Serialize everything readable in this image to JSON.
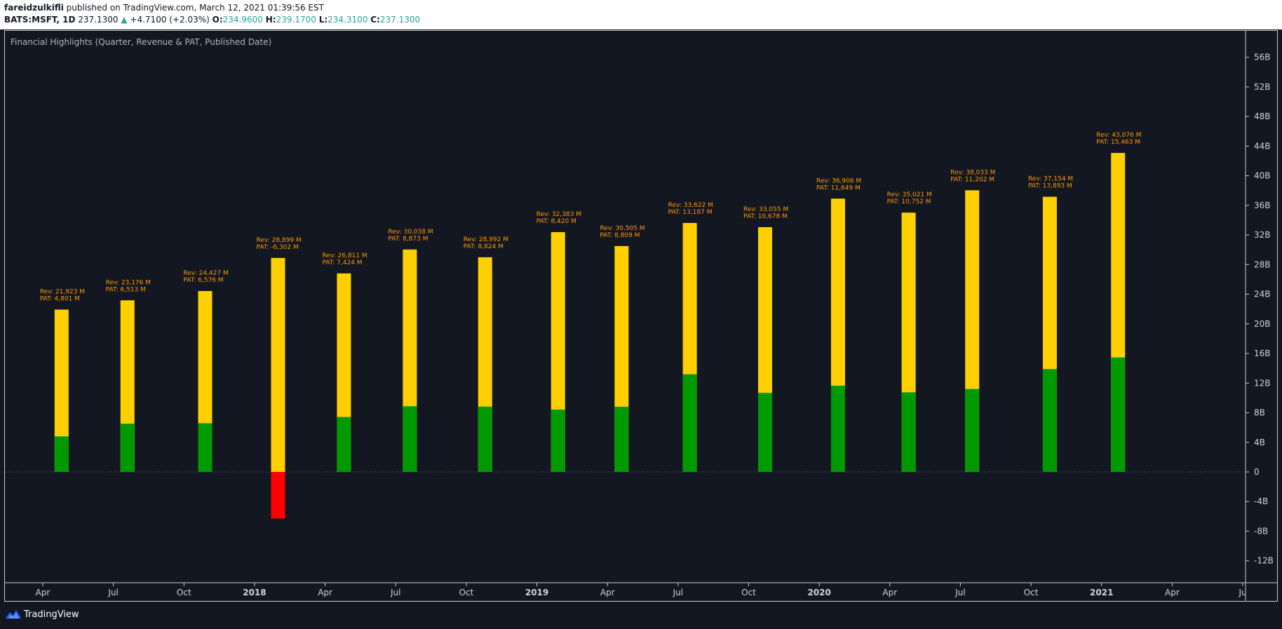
{
  "header": {
    "author": "fareidzulkifli",
    "published_text": "published on TradingView.com, March 12, 2021 01:39:56 EST",
    "symbol": "BATS:MSFT, 1D",
    "price": "237.1300",
    "change_arrow": "▲",
    "change": "+4.7100 (+2.03%)",
    "open_label": "O:",
    "open": "234.9600",
    "high_label": "H:",
    "high": "239.1700",
    "low_label": "L:",
    "low": "234.3100",
    "close_label": "C:",
    "close": "237.1300"
  },
  "indicator_title": "Financial Highlights (Quarter, Revenue & PAT, Published Date)",
  "footer": {
    "brand": "TradingView"
  },
  "colors": {
    "revenue": "#ffd000",
    "pat_positive": "#009900",
    "pat_negative": "#ff0000",
    "label_text": "#ff9800",
    "axis_text": "#d1d4dc",
    "zero_line": "#787b86"
  },
  "chart_data": {
    "type": "bar",
    "title": "Financial Highlights (Quarter, Revenue & PAT, Published Date)",
    "xlabel": "",
    "ylabel": "",
    "ylim": [
      -15,
      59
    ],
    "grid": false,
    "y_ticks": [
      {
        "value": 56,
        "label": "56B"
      },
      {
        "value": 52,
        "label": "52B"
      },
      {
        "value": 48,
        "label": "48B"
      },
      {
        "value": 44,
        "label": "44B"
      },
      {
        "value": 40,
        "label": "40B"
      },
      {
        "value": 36,
        "label": "36B"
      },
      {
        "value": 32,
        "label": "32B"
      },
      {
        "value": 28,
        "label": "28B"
      },
      {
        "value": 24,
        "label": "24B"
      },
      {
        "value": 20,
        "label": "20B"
      },
      {
        "value": 16,
        "label": "16B"
      },
      {
        "value": 12,
        "label": "12B"
      },
      {
        "value": 8,
        "label": "8B"
      },
      {
        "value": 4,
        "label": "4B"
      },
      {
        "value": 0,
        "label": "0"
      },
      {
        "value": -4,
        "label": "-4B"
      },
      {
        "value": -8,
        "label": "-8B"
      },
      {
        "value": -12,
        "label": "-12B"
      }
    ],
    "x_ticks": [
      {
        "month": 3,
        "label": "Apr",
        "bold": false
      },
      {
        "month": 6,
        "label": "Jul",
        "bold": false
      },
      {
        "month": 9,
        "label": "Oct",
        "bold": false
      },
      {
        "month": 12,
        "label": "2018",
        "bold": true
      },
      {
        "month": 15,
        "label": "Apr",
        "bold": false
      },
      {
        "month": 18,
        "label": "Jul",
        "bold": false
      },
      {
        "month": 21,
        "label": "Oct",
        "bold": false
      },
      {
        "month": 24,
        "label": "2019",
        "bold": true
      },
      {
        "month": 27,
        "label": "Apr",
        "bold": false
      },
      {
        "month": 30,
        "label": "Jul",
        "bold": false
      },
      {
        "month": 33,
        "label": "Oct",
        "bold": false
      },
      {
        "month": 36,
        "label": "2020",
        "bold": true
      },
      {
        "month": 39,
        "label": "Apr",
        "bold": false
      },
      {
        "month": 42,
        "label": "Jul",
        "bold": false
      },
      {
        "month": 45,
        "label": "Oct",
        "bold": false
      },
      {
        "month": 48,
        "label": "2021",
        "bold": true
      },
      {
        "month": 51,
        "label": "Apr",
        "bold": false
      },
      {
        "month": 54,
        "label": "Ju",
        "bold": false
      }
    ],
    "unit": "B",
    "series": [
      {
        "name": "Revenue",
        "values": [
          21.923,
          23.176,
          24.427,
          28.899,
          26.811,
          30.038,
          28.992,
          32.383,
          30.505,
          33.622,
          33.055,
          36.906,
          35.021,
          38.033,
          37.154,
          43.076
        ]
      },
      {
        "name": "PAT",
        "values": [
          4.801,
          6.513,
          6.576,
          -6.302,
          7.424,
          8.873,
          8.824,
          8.42,
          8.809,
          13.187,
          10.678,
          11.649,
          10.752,
          11.202,
          13.893,
          15.463
        ]
      }
    ],
    "bar_months": [
      3.8,
      6.6,
      9.9,
      13.0,
      15.8,
      18.6,
      21.8,
      24.9,
      27.6,
      30.5,
      33.7,
      36.8,
      39.8,
      42.5,
      45.8,
      48.7
    ],
    "labels": [
      {
        "rev": "Rev: 21,923 M",
        "pat": "PAT: 4,801 M"
      },
      {
        "rev": "Rev: 23,176 M",
        "pat": "PAT: 6,513 M"
      },
      {
        "rev": "Rev: 24,427 M",
        "pat": "PAT: 6,576 M"
      },
      {
        "rev": "Rev: 28,899 M",
        "pat": "PAT: -6,302 M"
      },
      {
        "rev": "Rev: 26,811 M",
        "pat": "PAT: 7,424 M"
      },
      {
        "rev": "Rev: 30,038 M",
        "pat": "PAT: 8,873 M"
      },
      {
        "rev": "Rev: 28,992 M",
        "pat": "PAT: 8,824 M"
      },
      {
        "rev": "Rev: 32,383 M",
        "pat": "PAT: 8,420 M"
      },
      {
        "rev": "Rev: 30,505 M",
        "pat": "PAT: 8,809 M"
      },
      {
        "rev": "Rev: 33,622 M",
        "pat": "PAT: 13,187 M"
      },
      {
        "rev": "Rev: 33,055 M",
        "pat": "PAT: 10,678 M"
      },
      {
        "rev": "Rev: 36,906 M",
        "pat": "PAT: 11,649 M"
      },
      {
        "rev": "Rev: 35,021 M",
        "pat": "PAT: 10,752 M"
      },
      {
        "rev": "Rev: 38,033 M",
        "pat": "PAT: 11,202 M"
      },
      {
        "rev": "Rev: 37,154 M",
        "pat": "PAT: 13,893 M"
      },
      {
        "rev": "Rev: 43,076 M",
        "pat": "PAT: 15,463 M"
      }
    ]
  }
}
